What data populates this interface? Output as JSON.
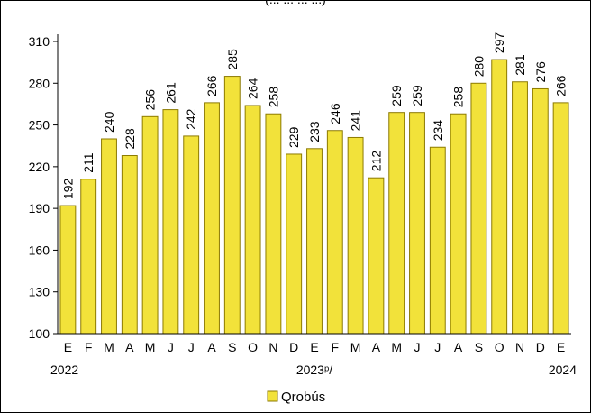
{
  "title_fragment": "(... ... ... ...)",
  "chart_data": {
    "type": "bar",
    "categories": [
      "E",
      "F",
      "M",
      "A",
      "M",
      "J",
      "J",
      "A",
      "S",
      "O",
      "N",
      "D",
      "E",
      "F",
      "M",
      "A",
      "M",
      "J",
      "J",
      "A",
      "S",
      "O",
      "N",
      "D",
      "E"
    ],
    "values": [
      192,
      211,
      240,
      228,
      256,
      261,
      242,
      266,
      285,
      264,
      258,
      229,
      233,
      246,
      241,
      212,
      259,
      259,
      234,
      258,
      280,
      297,
      281,
      276,
      266
    ],
    "year_labels": [
      {
        "text": "2022",
        "index": 0
      },
      {
        "text": "2023ᵖ/",
        "index": 12
      },
      {
        "text": "2024",
        "index": 24
      }
    ],
    "series": [
      {
        "name": "Qrobús",
        "values": [
          192,
          211,
          240,
          228,
          256,
          261,
          242,
          266,
          285,
          264,
          258,
          229,
          233,
          246,
          241,
          212,
          259,
          259,
          234,
          258,
          280,
          297,
          281,
          276,
          266
        ]
      }
    ],
    "ylim": [
      100,
      310
    ],
    "yticks": [
      100,
      130,
      160,
      190,
      220,
      250,
      280,
      310
    ],
    "grid": false,
    "legend": "bottom-center",
    "colors": {
      "bar_fill": "#F2E23A",
      "bar_stroke": "#8C7A00"
    }
  }
}
